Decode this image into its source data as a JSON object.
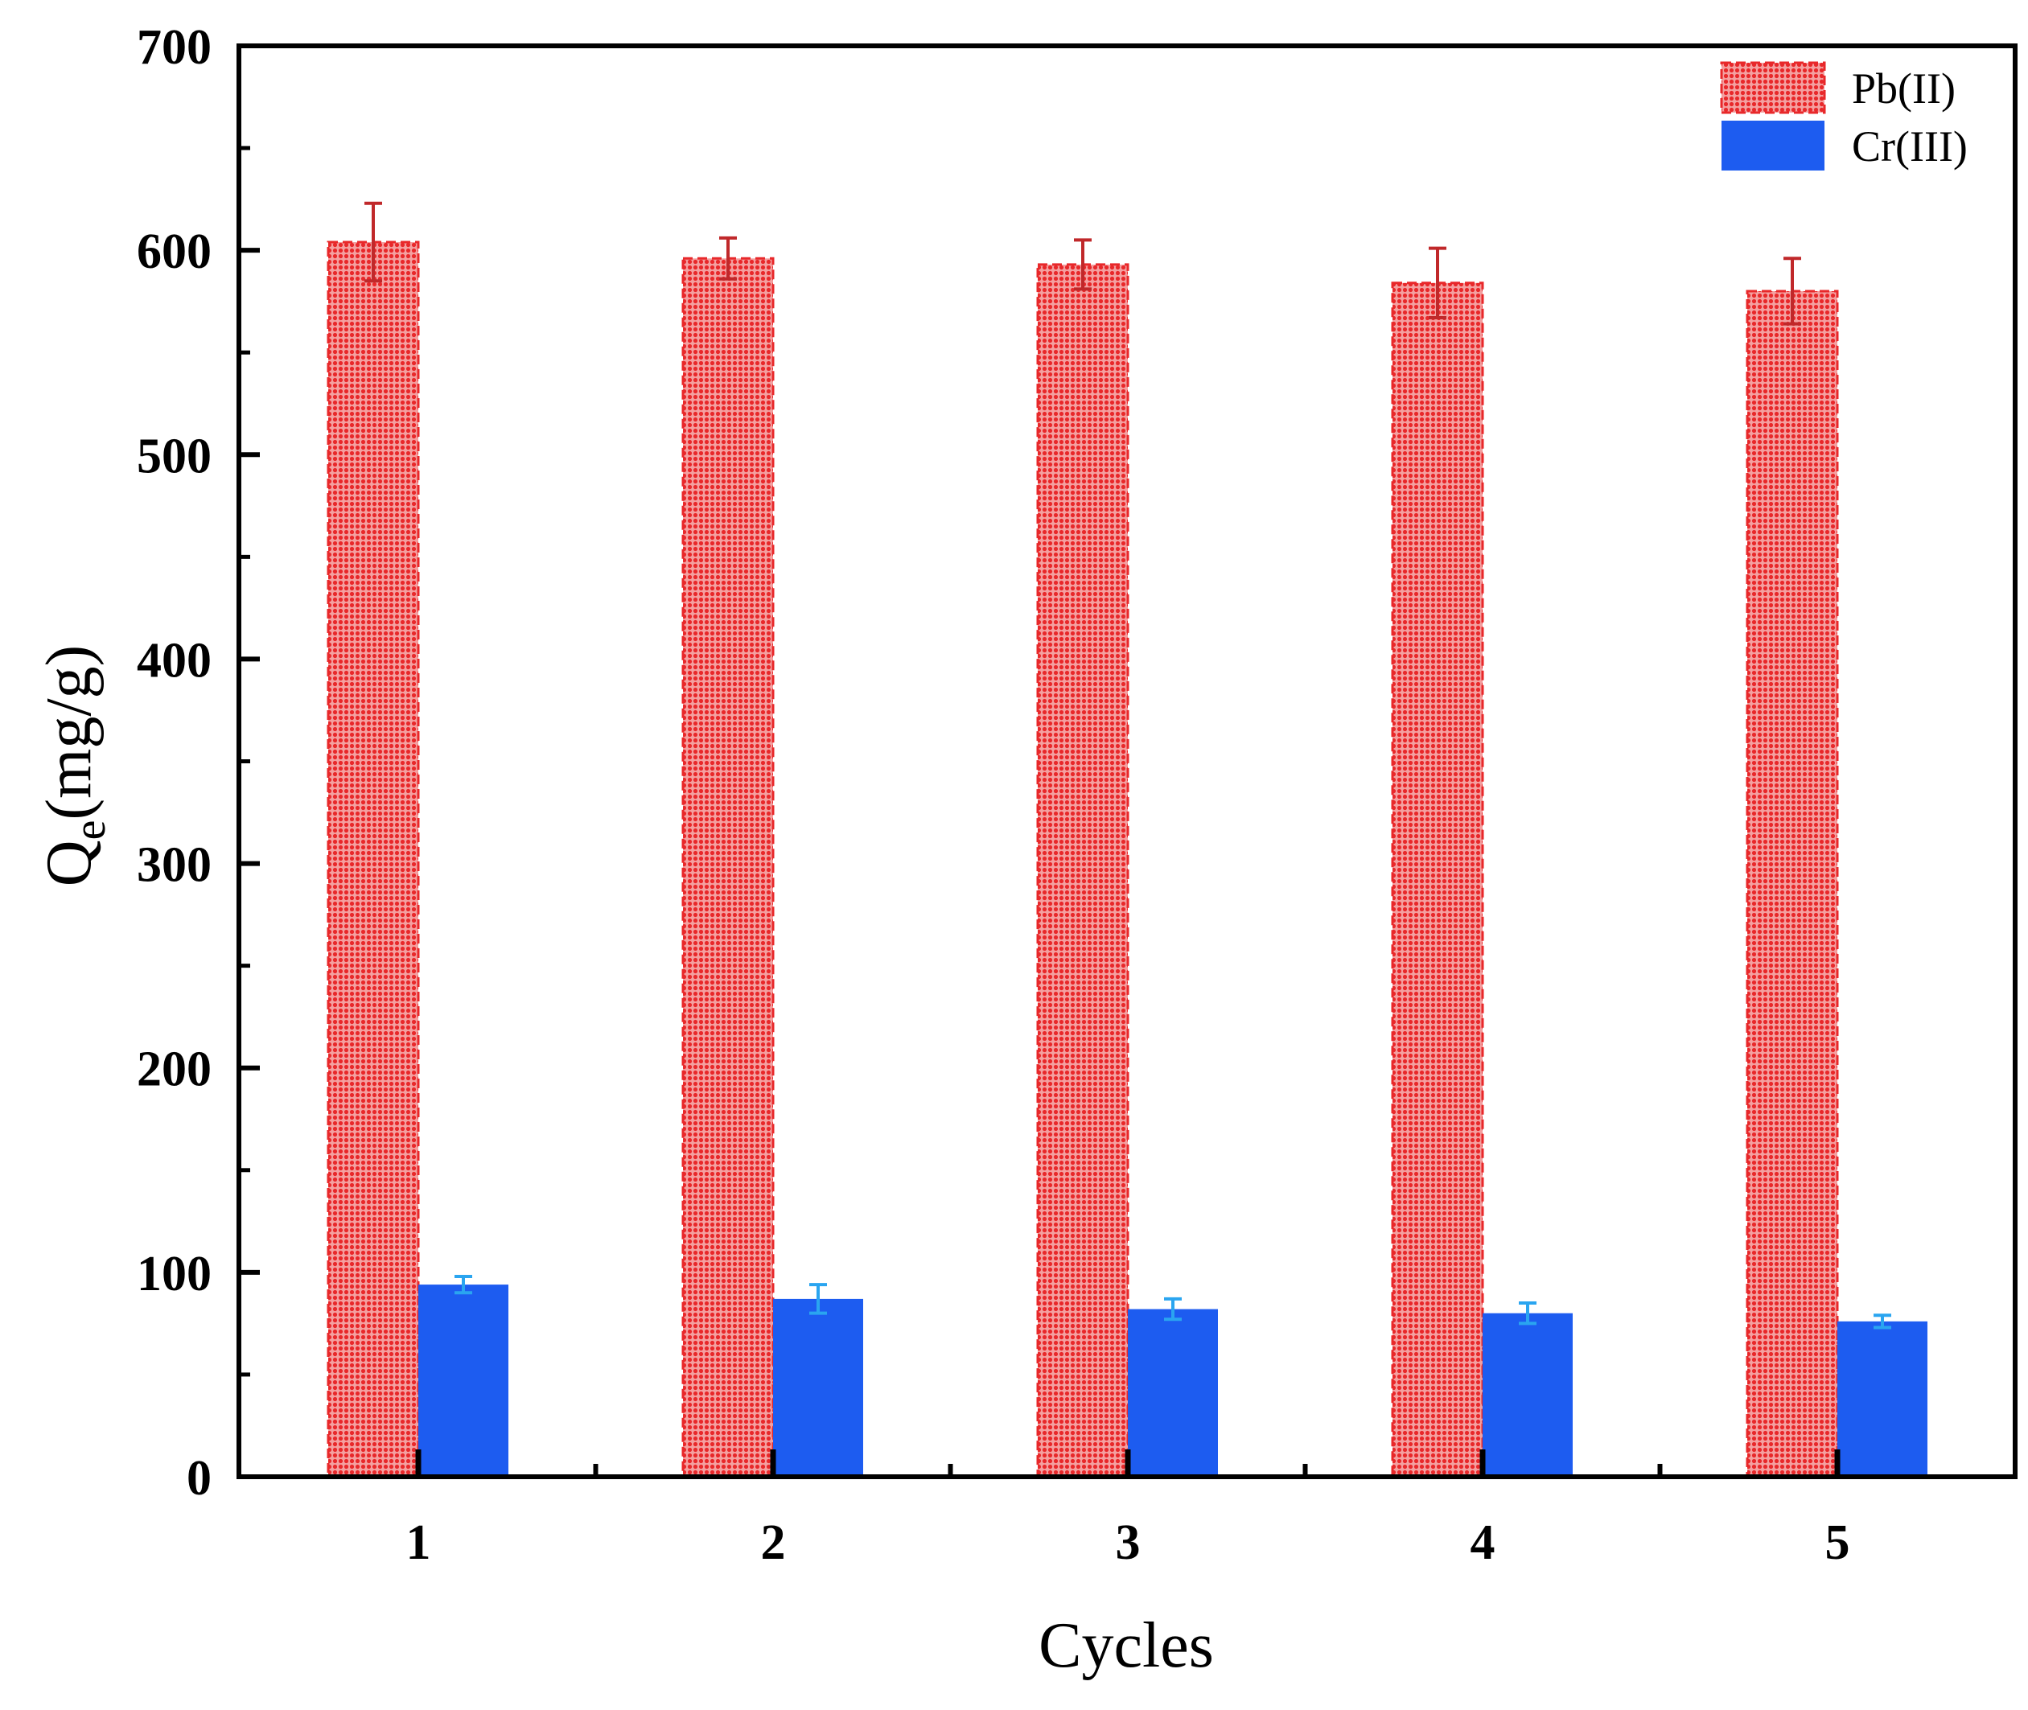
{
  "chart_data": {
    "type": "bar",
    "categories": [
      "1",
      "2",
      "3",
      "4",
      "5"
    ],
    "series": [
      {
        "name": "Pb(II)",
        "values": [
          604,
          596,
          593,
          584,
          580
        ],
        "errors": [
          19,
          10,
          12,
          17,
          16
        ],
        "color": "#ee3b3b",
        "pattern": "dotted"
      },
      {
        "name": "Cr(III)",
        "values": [
          94,
          87,
          82,
          80,
          76
        ],
        "errors": [
          4,
          7,
          5,
          5,
          3
        ],
        "color": "#1d5cf0",
        "error_color": "#2aa5f0"
      }
    ],
    "xlabel": "Cycles",
    "ylabel": {
      "main": "Q",
      "sub": "e",
      "rest": "(mg/g)"
    },
    "ylim": [
      0,
      700
    ],
    "yticks": [
      0,
      100,
      200,
      300,
      400,
      500,
      600,
      700
    ],
    "legend_position": "top-right",
    "grid": false
  }
}
